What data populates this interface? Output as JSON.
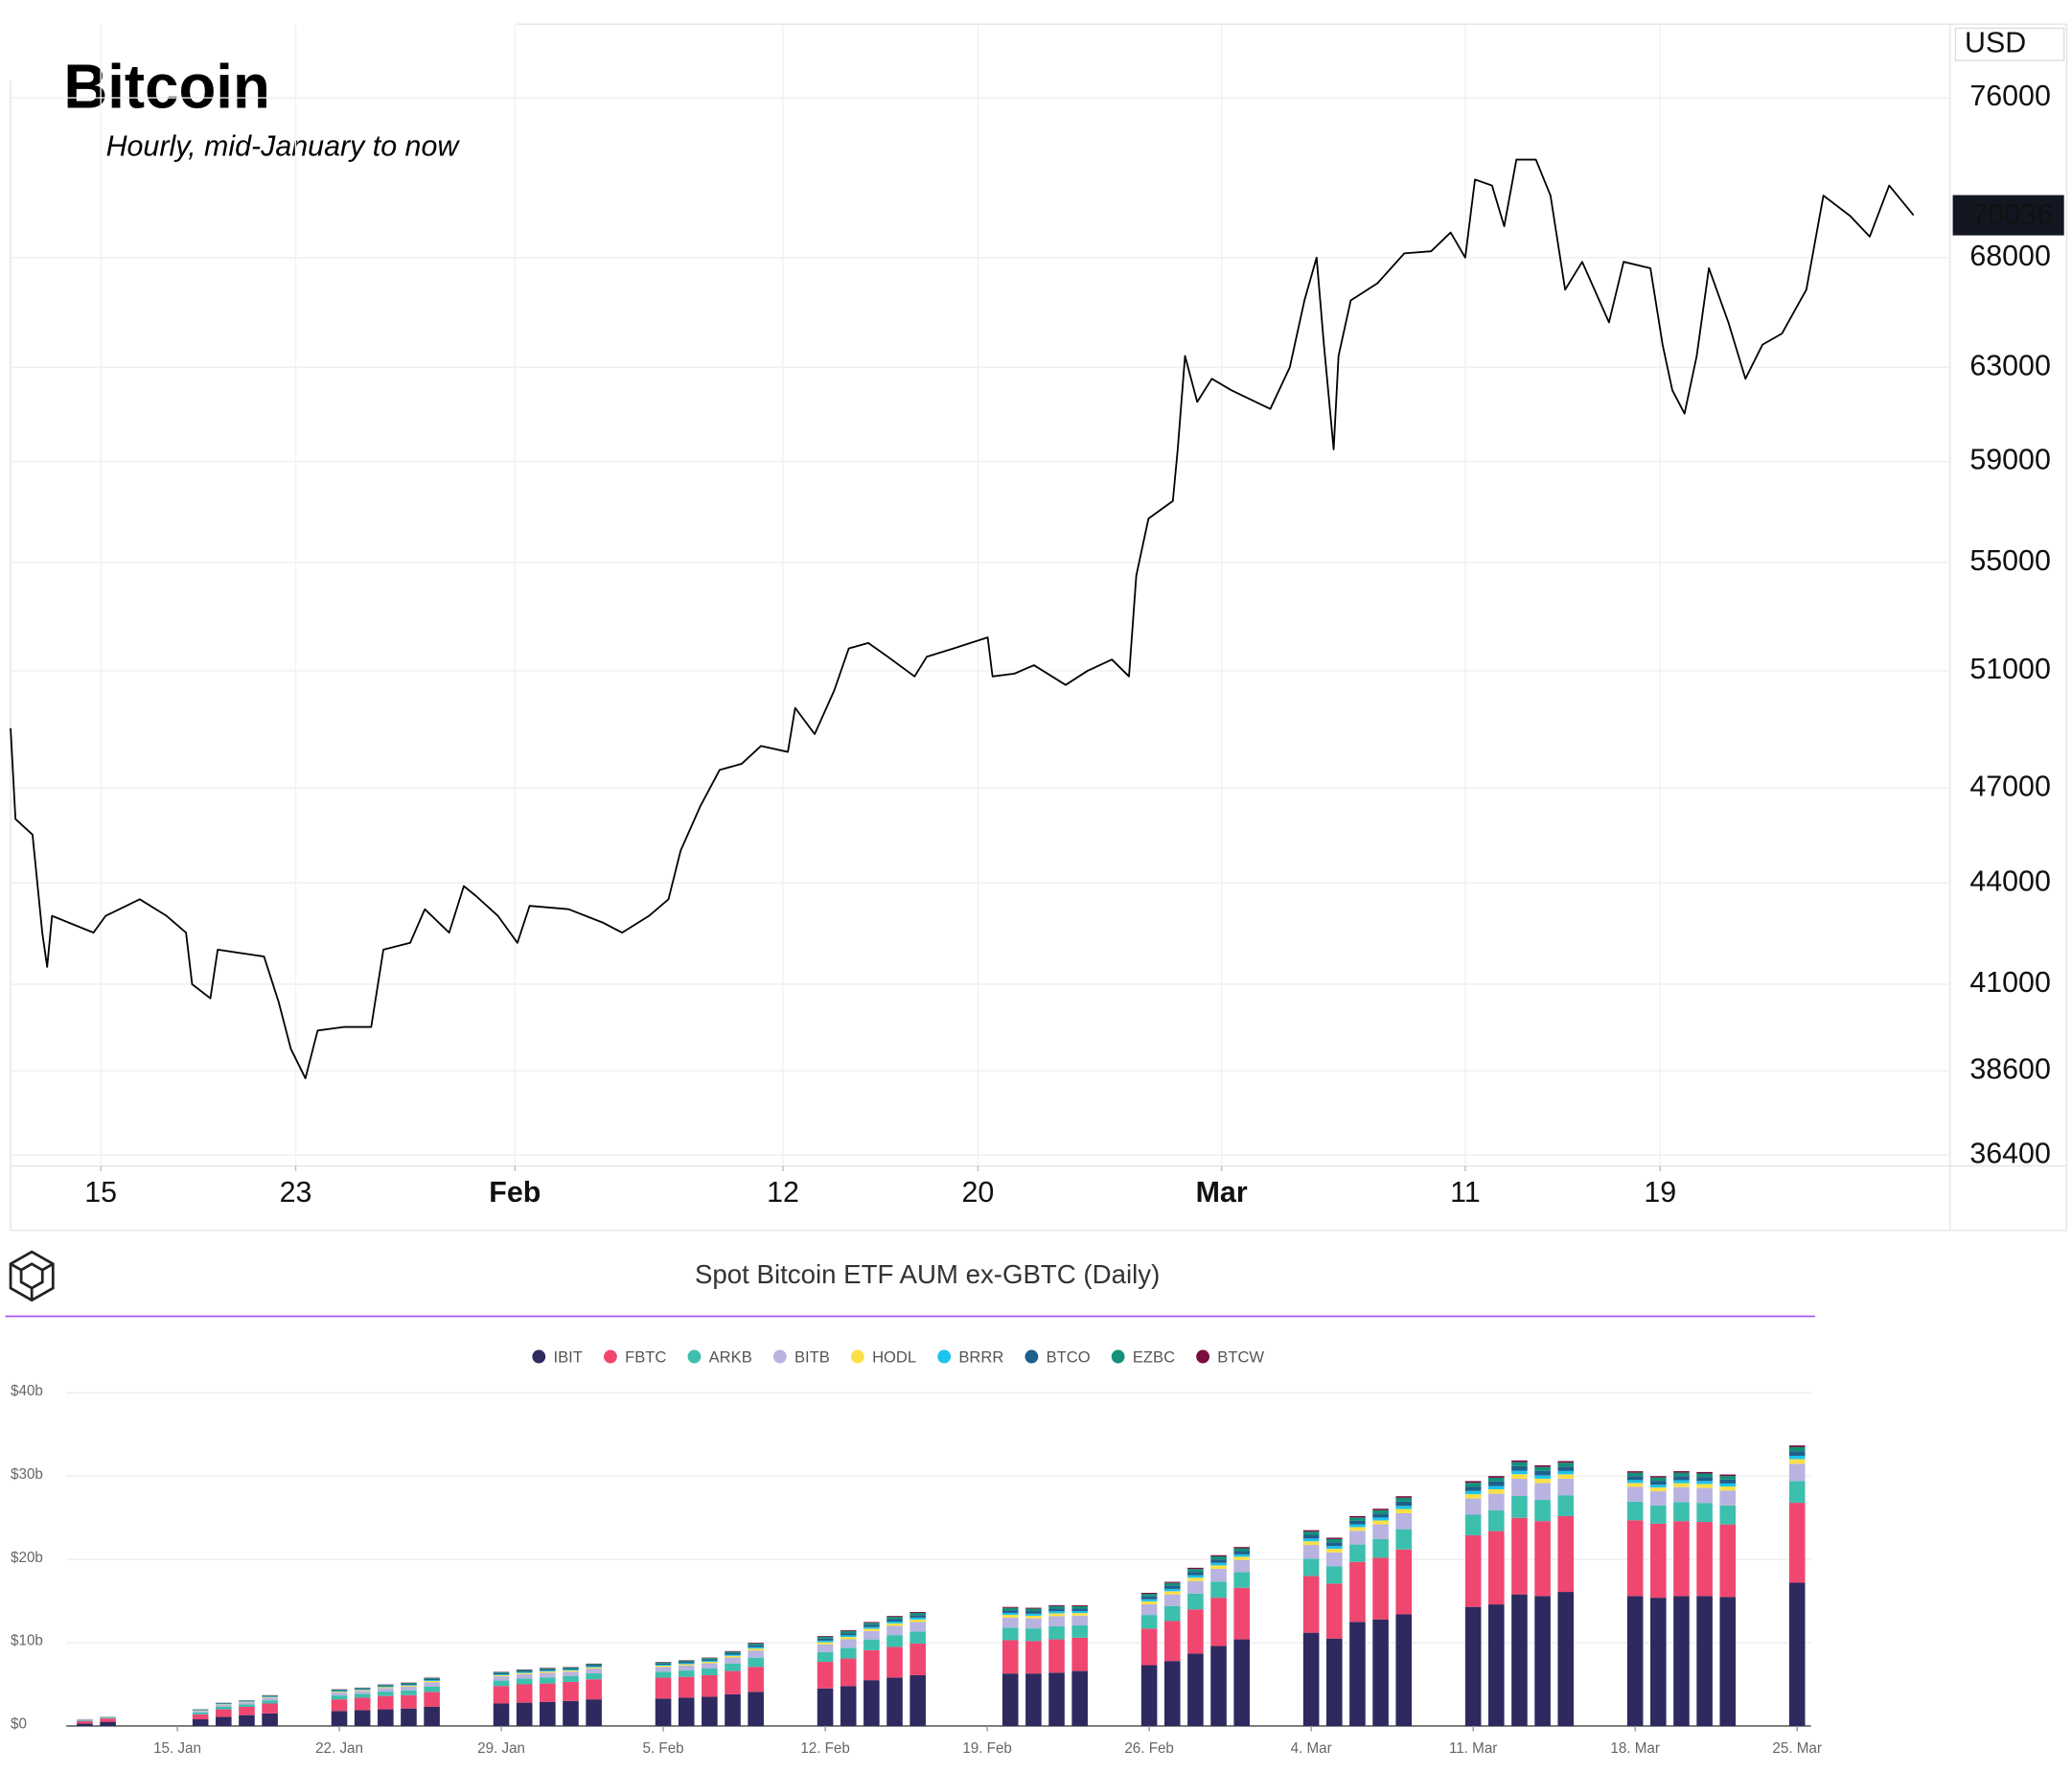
{
  "chart_data": [
    {
      "type": "line",
      "title": "Bitcoin",
      "subtitle": "Hourly, mid-January to now",
      "unit": "USD",
      "log_scale": true,
      "grid": true,
      "color": "#000000",
      "last_price": 70036,
      "xlim": [
        11.3,
        90.9
      ],
      "xticks": [
        15,
        23,
        {
          "value": 32,
          "label": "Feb"
        },
        {
          "value": 43,
          "label": "12"
        },
        {
          "value": 51,
          "label": "20"
        },
        {
          "value": 61,
          "label": "Mar"
        },
        {
          "value": 71,
          "label": "11"
        },
        {
          "value": 79,
          "label": "19"
        }
      ],
      "ylim": [
        36130,
        80000
      ],
      "yticks": [
        36400,
        38600,
        41000,
        44000,
        47000,
        51000,
        55000,
        59000,
        63000,
        68000,
        76000
      ],
      "x": [
        11.3,
        11.5,
        12.2,
        12.6,
        12.8,
        13.0,
        14.7,
        15.2,
        16.6,
        17.7,
        18.5,
        18.75,
        19.5,
        19.8,
        21.7,
        22.3,
        22.8,
        23.4,
        23.9,
        25.0,
        26.1,
        26.6,
        27.7,
        28.3,
        29.3,
        29.9,
        30.4,
        31.3,
        32.1,
        32.6,
        34.2,
        35.6,
        36.4,
        37.5,
        38.3,
        38.8,
        39.6,
        40.4,
        41.3,
        42.1,
        43.2,
        43.5,
        44.3,
        45.1,
        45.7,
        46.5,
        47.3,
        48.4,
        48.9,
        50.0,
        51.4,
        51.6,
        52.5,
        53.3,
        54.6,
        55.5,
        56.5,
        57.2,
        57.5,
        58.0,
        59.0,
        59.2,
        59.5,
        60.0,
        60.6,
        61.4,
        63.0,
        63.8,
        64.4,
        64.9,
        65.2,
        65.6,
        65.8,
        66.3,
        67.4,
        68.5,
        69.6,
        70.4,
        71.0,
        71.4,
        72.1,
        72.6,
        73.1,
        73.9,
        74.5,
        75.1,
        75.8,
        76.9,
        77.5,
        78.6,
        79.1,
        79.5,
        80.0,
        80.5,
        81.0,
        81.8,
        82.5,
        83.2,
        84.0,
        85.0,
        85.7,
        86.8,
        87.6,
        88.4,
        89.4
      ],
      "values": [
        49000,
        46000,
        45500,
        42500,
        41500,
        43000,
        42500,
        43000,
        43500,
        43000,
        42500,
        41000,
        40600,
        42000,
        41800,
        40500,
        39200,
        38400,
        39700,
        39800,
        39800,
        42000,
        42200,
        43200,
        42500,
        43900,
        43600,
        43000,
        42200,
        43300,
        43200,
        42800,
        42500,
        43000,
        43500,
        45000,
        46400,
        47600,
        47800,
        48400,
        48200,
        49700,
        48800,
        50300,
        51800,
        52000,
        51500,
        50800,
        51500,
        51800,
        52200,
        50800,
        50900,
        51200,
        50500,
        51000,
        51400,
        50800,
        54500,
        56700,
        57400,
        59500,
        63500,
        61500,
        62500,
        62000,
        61200,
        63000,
        66000,
        68000,
        64000,
        59500,
        63500,
        66000,
        66800,
        68200,
        68300,
        69200,
        68000,
        71800,
        71500,
        69500,
        72800,
        72800,
        71000,
        66500,
        67800,
        65000,
        67800,
        67500,
        64000,
        62000,
        61000,
        63500,
        67500,
        65000,
        62500,
        64000,
        64500,
        66500,
        71000,
        70000,
        69000,
        71500,
        70036
      ]
    },
    {
      "type": "bar",
      "stacked": true,
      "title": "Spot Bitcoin ETF AUM ex-GBTC (Daily)",
      "legend": "top",
      "grid": true,
      "xlim": [
        10.2,
        85.6
      ],
      "xticks": [
        {
          "value": 15,
          "label": "15. Jan"
        },
        {
          "value": 22,
          "label": "22. Jan"
        },
        {
          "value": 29,
          "label": "29. Jan"
        },
        {
          "value": 36,
          "label": "5. Feb"
        },
        {
          "value": 43,
          "label": "12. Feb"
        },
        {
          "value": 50,
          "label": "19. Feb"
        },
        {
          "value": 57,
          "label": "26. Feb"
        },
        {
          "value": 64,
          "label": "4. Mar"
        },
        {
          "value": 71,
          "label": "11. Mar"
        },
        {
          "value": 78,
          "label": "18. Mar"
        },
        {
          "value": 85,
          "label": "25. Mar"
        }
      ],
      "ylim": [
        0,
        40
      ],
      "yticks": [
        {
          "value": 0,
          "label": "$0"
        },
        {
          "value": 10,
          "label": "$10b"
        },
        {
          "value": 20,
          "label": "$20b"
        },
        {
          "value": 30,
          "label": "$30b"
        },
        {
          "value": 40,
          "label": "$40b"
        }
      ],
      "x": [
        11,
        12,
        16,
        17,
        18,
        19,
        22,
        23,
        24,
        25,
        26,
        29,
        30,
        31,
        32,
        33,
        36,
        37,
        38,
        39,
        40,
        43,
        44,
        45,
        46,
        47,
        51,
        52,
        53,
        54,
        57,
        58,
        59,
        60,
        61,
        64,
        65,
        66,
        67,
        68,
        71,
        72,
        73,
        74,
        75,
        78,
        79,
        80,
        81,
        82,
        85
      ],
      "series": [
        {
          "name": "IBIT",
          "color": "#2e2a5f",
          "values": [
            0.3,
            0.5,
            0.8,
            1.1,
            1.3,
            1.5,
            1.8,
            1.9,
            2.0,
            2.1,
            2.3,
            2.7,
            2.8,
            2.9,
            3.0,
            3.2,
            3.3,
            3.4,
            3.5,
            3.8,
            4.1,
            4.5,
            4.8,
            5.5,
            5.8,
            6.1,
            6.3,
            6.3,
            6.4,
            6.6,
            7.3,
            7.8,
            8.7,
            9.6,
            10.4,
            11.2,
            10.5,
            12.5,
            12.8,
            13.4,
            14.3,
            14.6,
            15.8,
            15.6,
            16.1,
            15.6,
            15.4,
            15.6,
            15.6,
            15.5,
            17.2
          ]
        },
        {
          "name": "FBTC",
          "color": "#ef476f",
          "values": [
            0.3,
            0.4,
            0.6,
            0.9,
            1.0,
            1.2,
            1.4,
            1.5,
            1.6,
            1.6,
            1.8,
            2.1,
            2.2,
            2.2,
            2.3,
            2.4,
            2.5,
            2.5,
            2.6,
            2.8,
            3.0,
            3.2,
            3.3,
            3.6,
            3.7,
            3.8,
            4.0,
            3.9,
            4.0,
            4.0,
            4.4,
            4.8,
            5.3,
            5.8,
            6.2,
            6.8,
            6.6,
            7.2,
            7.4,
            7.8,
            8.6,
            8.8,
            9.2,
            9.0,
            9.1,
            9.1,
            8.9,
            9.0,
            8.9,
            8.7,
            9.6
          ]
        },
        {
          "name": "ARKB",
          "color": "#3dbfae",
          "values": [
            0.08,
            0.08,
            0.23,
            0.3,
            0.3,
            0.38,
            0.46,
            0.46,
            0.53,
            0.57,
            0.65,
            0.65,
            0.68,
            0.72,
            0.68,
            0.72,
            0.72,
            0.76,
            0.8,
            0.91,
            1.1,
            1.18,
            1.29,
            1.29,
            1.41,
            1.44,
            1.52,
            1.52,
            1.56,
            1.48,
            1.63,
            1.79,
            1.9,
            1.94,
            1.86,
            2.09,
            2.09,
            2.09,
            2.24,
            2.43,
            2.47,
            2.51,
            2.62,
            2.55,
            2.51,
            2.24,
            2.17,
            2.28,
            2.28,
            2.28,
            2.62
          ]
        },
        {
          "name": "BITB",
          "color": "#b8b3e0",
          "values": [
            0.06,
            0.06,
            0.18,
            0.24,
            0.24,
            0.3,
            0.36,
            0.36,
            0.42,
            0.45,
            0.51,
            0.51,
            0.54,
            0.57,
            0.54,
            0.57,
            0.57,
            0.6,
            0.63,
            0.72,
            0.87,
            0.93,
            1.02,
            1.02,
            1.11,
            1.14,
            1.2,
            1.2,
            1.23,
            1.17,
            1.29,
            1.41,
            1.5,
            1.53,
            1.47,
            1.65,
            1.65,
            1.65,
            1.77,
            1.92,
            1.95,
            1.98,
            2.07,
            2.01,
            1.98,
            1.77,
            1.71,
            1.8,
            1.8,
            1.8,
            2.07
          ]
        },
        {
          "name": "HODL",
          "color": "#fde047",
          "values": [
            0.02,
            0.02,
            0.05,
            0.06,
            0.06,
            0.08,
            0.1,
            0.1,
            0.11,
            0.12,
            0.14,
            0.14,
            0.14,
            0.15,
            0.14,
            0.15,
            0.15,
            0.16,
            0.17,
            0.19,
            0.23,
            0.25,
            0.27,
            0.27,
            0.3,
            0.3,
            0.32,
            0.32,
            0.33,
            0.31,
            0.34,
            0.38,
            0.4,
            0.41,
            0.39,
            0.44,
            0.44,
            0.44,
            0.47,
            0.51,
            0.52,
            0.53,
            0.55,
            0.54,
            0.53,
            0.47,
            0.46,
            0.48,
            0.48,
            0.48,
            0.55
          ]
        },
        {
          "name": "BRRR",
          "color": "#1bc4ef",
          "values": [
            0.01,
            0.01,
            0.04,
            0.05,
            0.05,
            0.06,
            0.07,
            0.07,
            0.08,
            0.09,
            0.1,
            0.1,
            0.11,
            0.11,
            0.11,
            0.11,
            0.11,
            0.12,
            0.13,
            0.14,
            0.17,
            0.19,
            0.2,
            0.2,
            0.22,
            0.23,
            0.24,
            0.24,
            0.25,
            0.23,
            0.26,
            0.28,
            0.3,
            0.31,
            0.29,
            0.33,
            0.33,
            0.33,
            0.35,
            0.38,
            0.39,
            0.4,
            0.41,
            0.4,
            0.4,
            0.35,
            0.34,
            0.36,
            0.36,
            0.36,
            0.41
          ]
        },
        {
          "name": "BTCO",
          "color": "#1f5f8b",
          "values": [
            0.02,
            0.02,
            0.05,
            0.06,
            0.06,
            0.08,
            0.1,
            0.1,
            0.11,
            0.12,
            0.14,
            0.14,
            0.14,
            0.15,
            0.14,
            0.15,
            0.15,
            0.16,
            0.17,
            0.19,
            0.23,
            0.25,
            0.27,
            0.27,
            0.3,
            0.3,
            0.32,
            0.32,
            0.33,
            0.31,
            0.34,
            0.38,
            0.4,
            0.41,
            0.39,
            0.44,
            0.44,
            0.44,
            0.47,
            0.51,
            0.52,
            0.53,
            0.55,
            0.54,
            0.53,
            0.47,
            0.46,
            0.48,
            0.48,
            0.48,
            0.55
          ]
        },
        {
          "name": "EZBC",
          "color": "#11917a",
          "values": [
            0.01,
            0.01,
            0.04,
            0.06,
            0.06,
            0.07,
            0.08,
            0.08,
            0.1,
            0.11,
            0.12,
            0.12,
            0.13,
            0.13,
            0.13,
            0.13,
            0.13,
            0.14,
            0.15,
            0.17,
            0.2,
            0.22,
            0.24,
            0.24,
            0.26,
            0.27,
            0.28,
            0.28,
            0.29,
            0.27,
            0.3,
            0.33,
            0.35,
            0.36,
            0.34,
            0.39,
            0.39,
            0.39,
            0.41,
            0.45,
            0.46,
            0.46,
            0.48,
            0.47,
            0.46,
            0.41,
            0.4,
            0.42,
            0.42,
            0.42,
            0.48
          ]
        },
        {
          "name": "BTCW",
          "color": "#7b0d3e",
          "values": [
            0.01,
            0.01,
            0.02,
            0.02,
            0.02,
            0.03,
            0.04,
            0.04,
            0.04,
            0.05,
            0.05,
            0.05,
            0.05,
            0.06,
            0.05,
            0.06,
            0.06,
            0.06,
            0.06,
            0.07,
            0.09,
            0.09,
            0.1,
            0.1,
            0.11,
            0.11,
            0.12,
            0.12,
            0.12,
            0.12,
            0.13,
            0.14,
            0.15,
            0.15,
            0.15,
            0.17,
            0.17,
            0.17,
            0.18,
            0.19,
            0.2,
            0.2,
            0.21,
            0.2,
            0.2,
            0.18,
            0.17,
            0.18,
            0.18,
            0.18,
            0.21
          ]
        }
      ]
    }
  ]
}
